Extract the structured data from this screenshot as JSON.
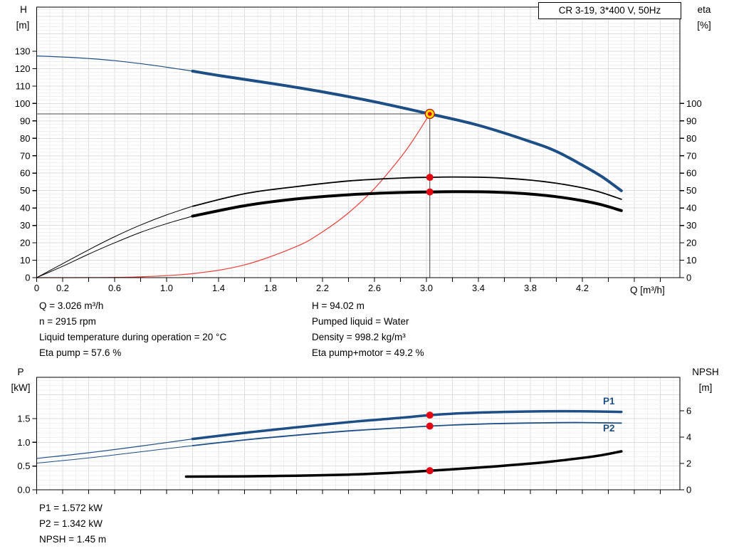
{
  "header": {
    "model_box": "CR 3-19, 3*400 V, 50Hz"
  },
  "colors": {
    "curve_blue": "#1d4e85",
    "curve_black": "#000000",
    "system_red": "#e8413a",
    "marker_red": "#e30613",
    "duty_yellow": "#ffd900",
    "duty_ring": "#cc0000",
    "crosshair_gray": "#444444",
    "grid_minor": "#efefef",
    "grid_major": "#dcdcdc"
  },
  "duty_point": {
    "q_m3h": 3.026,
    "h_m": 94.02,
    "n_rpm": 2915,
    "eta_pump_pct": 57.6,
    "eta_pump_motor_pct": 49.2,
    "p1_kw": 1.572,
    "p2_kw": 1.342,
    "npsh_m": 1.45,
    "pumped_liquid": "Water",
    "density_kg_m3": 998.2,
    "liquid_temp_c": 20
  },
  "readouts": {
    "left": [
      "Q = 3.026 m³/h",
      "n = 2915 rpm",
      "Liquid temperature during operation = 20 °C",
      "Eta pump = 57.6 %"
    ],
    "right": [
      "H = 94.02 m",
      "Pumped liquid = Water",
      "Density = 998.2 kg/m³",
      "Eta pump+motor = 49.2 %"
    ],
    "power": [
      "P1 = 1.572 kW",
      "P2 = 1.342 kW",
      "NPSH = 1.45 m"
    ]
  },
  "chart_data": [
    {
      "id": "qh",
      "type": "line",
      "title": "",
      "x_axis": {
        "title": "Q [m³/h]",
        "min": 0,
        "max": 4.95,
        "tick_step": 0.2,
        "tick_labels": [
          "0",
          "0.2",
          "0.6",
          "1.0",
          "1.4",
          "1.8",
          "2.2",
          "2.6",
          "3.0",
          "3.4",
          "3.8",
          "4.2"
        ]
      },
      "y_left": {
        "title": "H",
        "unit": "[m]",
        "min": 0,
        "max": 155,
        "tick_labels": [
          "0",
          "10",
          "20",
          "30",
          "40",
          "50",
          "60",
          "70",
          "80",
          "90",
          "100",
          "110",
          "120",
          "130"
        ]
      },
      "y_right": {
        "title": "eta",
        "unit": "[%]",
        "min": 0,
        "max": 100,
        "tick_labels": [
          "0",
          "10",
          "20",
          "30",
          "40",
          "50",
          "60",
          "70",
          "80",
          "90",
          "100"
        ]
      },
      "crosshair": {
        "q": 3.026,
        "value": 94.02,
        "axis": "left"
      },
      "series": [
        {
          "name": "system-curve",
          "axis": "left",
          "color": "#e8413a",
          "width": 1.2,
          "points": [
            [
              0,
              0
            ],
            [
              0.4,
              0.05
            ],
            [
              0.8,
              0.5
            ],
            [
              1.2,
              2.3
            ],
            [
              1.6,
              7.3
            ],
            [
              2.0,
              17.9
            ],
            [
              2.2,
              26.3
            ],
            [
              2.4,
              37.2
            ],
            [
              2.6,
              51.2
            ],
            [
              2.8,
              68.9
            ],
            [
              2.9,
              79.3
            ],
            [
              3.026,
              94.02
            ]
          ]
        },
        {
          "name": "eta-pump-curve-extension",
          "axis": "right",
          "color": "#000000",
          "width": 1,
          "points": [
            [
              0,
              0
            ],
            [
              0.2,
              8
            ],
            [
              0.4,
              16
            ],
            [
              0.6,
              23.5
            ],
            [
              0.8,
              30.2
            ],
            [
              1.0,
              36
            ],
            [
              1.2,
              41
            ]
          ]
        },
        {
          "name": "eta-pump-curve",
          "axis": "right",
          "color": "#000000",
          "width": 1.8,
          "points": [
            [
              1.2,
              41
            ],
            [
              1.6,
              48.2
            ],
            [
              2.0,
              52.3
            ],
            [
              2.4,
              55.5
            ],
            [
              2.8,
              57.2
            ],
            [
              3.026,
              57.6
            ],
            [
              3.2,
              57.8
            ],
            [
              3.4,
              57.7
            ],
            [
              3.6,
              57.1
            ],
            [
              3.8,
              56.0
            ],
            [
              4.0,
              54.2
            ],
            [
              4.2,
              51.6
            ],
            [
              4.35,
              48.8
            ],
            [
              4.5,
              45.0
            ]
          ]
        },
        {
          "name": "eta-pump-motor-curve-extension",
          "axis": "right",
          "color": "#000000",
          "width": 1,
          "points": [
            [
              0,
              0
            ],
            [
              0.2,
              6.5
            ],
            [
              0.4,
              13.5
            ],
            [
              0.6,
              20
            ],
            [
              0.8,
              26
            ],
            [
              1.0,
              31
            ],
            [
              1.2,
              35.3
            ]
          ]
        },
        {
          "name": "eta-pump-motor-curve",
          "axis": "right",
          "color": "#000000",
          "width": 4,
          "points": [
            [
              1.2,
              35.3
            ],
            [
              1.6,
              41.3
            ],
            [
              2.0,
              45.2
            ],
            [
              2.4,
              47.6
            ],
            [
              2.8,
              48.9
            ],
            [
              3.026,
              49.2
            ],
            [
              3.2,
              49.35
            ],
            [
              3.4,
              49.3
            ],
            [
              3.6,
              48.9
            ],
            [
              3.8,
              48.0
            ],
            [
              4.0,
              46.5
            ],
            [
              4.2,
              44.2
            ],
            [
              4.35,
              41.8
            ],
            [
              4.5,
              38.5
            ]
          ]
        },
        {
          "name": "head-curve-extension",
          "axis": "left",
          "color": "#1d4e85",
          "width": 1.2,
          "points": [
            [
              0,
              127.3
            ],
            [
              0.3,
              126.3
            ],
            [
              0.6,
              124.6
            ],
            [
              0.9,
              121.9
            ],
            [
              1.2,
              118.6
            ]
          ]
        },
        {
          "name": "head-curve",
          "axis": "left",
          "color": "#1d4e85",
          "width": 4,
          "points": [
            [
              1.2,
              118.6
            ],
            [
              1.4,
              116.1
            ],
            [
              1.8,
              111.6
            ],
            [
              2.2,
              106.7
            ],
            [
              2.6,
              101.0
            ],
            [
              3.026,
              94.02
            ],
            [
              3.4,
              87.5
            ],
            [
              3.8,
              78.1
            ],
            [
              4.0,
              72.5
            ],
            [
              4.2,
              64.6
            ],
            [
              4.35,
              58.0
            ],
            [
              4.5,
              49.9
            ]
          ]
        }
      ],
      "markers": [
        {
          "style": "dot",
          "axis": "right",
          "q": 3.026,
          "value": 57.6
        },
        {
          "style": "dot",
          "axis": "right",
          "q": 3.026,
          "value": 49.2
        },
        {
          "style": "duty",
          "axis": "left",
          "q": 3.026,
          "value": 94.02
        }
      ]
    },
    {
      "id": "power",
      "type": "line",
      "title": "",
      "x_axis": {
        "title": "",
        "min": 0,
        "max": 4.95,
        "tick_step": 0.2,
        "tick_labels": []
      },
      "y_left": {
        "title": "P",
        "unit": "[kW]",
        "min": 0,
        "max": 2.37,
        "tick_labels": [
          "0.0",
          "0.5",
          "1.0",
          "1.5"
        ]
      },
      "y_right": {
        "title": "NPSH",
        "unit": "[m]",
        "min": 0,
        "max": 8.5,
        "tick_labels": [
          "0",
          "2",
          "4",
          "6"
        ]
      },
      "curve_labels": {
        "p1": "P1",
        "p2": "P2"
      },
      "series": [
        {
          "name": "p1-curve-extension",
          "axis": "left",
          "color": "#1d4e85",
          "width": 1.2,
          "points": [
            [
              0,
              0.66
            ],
            [
              0.4,
              0.78
            ],
            [
              0.8,
              0.92
            ],
            [
              1.2,
              1.07
            ]
          ]
        },
        {
          "name": "p1-curve",
          "axis": "left",
          "color": "#1d4e85",
          "width": 3.5,
          "points": [
            [
              1.2,
              1.07
            ],
            [
              1.6,
              1.2
            ],
            [
              2.0,
              1.315
            ],
            [
              2.4,
              1.425
            ],
            [
              2.8,
              1.515
            ],
            [
              3.026,
              1.572
            ],
            [
              3.3,
              1.615
            ],
            [
              3.6,
              1.64
            ],
            [
              3.9,
              1.652
            ],
            [
              4.2,
              1.653
            ],
            [
              4.5,
              1.64
            ]
          ]
        },
        {
          "name": "p2-curve-extension",
          "axis": "left",
          "color": "#1d4e85",
          "width": 1,
          "points": [
            [
              0,
              0.56
            ],
            [
              0.4,
              0.67
            ],
            [
              0.8,
              0.8
            ],
            [
              1.2,
              0.93
            ]
          ]
        },
        {
          "name": "p2-curve",
          "axis": "left",
          "color": "#1d4e85",
          "width": 1.8,
          "points": [
            [
              1.2,
              0.93
            ],
            [
              1.6,
              1.05
            ],
            [
              2.0,
              1.15
            ],
            [
              2.4,
              1.24
            ],
            [
              2.8,
              1.305
            ],
            [
              3.026,
              1.342
            ],
            [
              3.3,
              1.375
            ],
            [
              3.6,
              1.397
            ],
            [
              3.9,
              1.41
            ],
            [
              4.2,
              1.416
            ],
            [
              4.5,
              1.405
            ]
          ]
        },
        {
          "name": "npsh-curve",
          "axis": "right",
          "color": "#000000",
          "width": 3.5,
          "points": [
            [
              1.15,
              1.0
            ],
            [
              1.6,
              1.02
            ],
            [
              2.0,
              1.07
            ],
            [
              2.4,
              1.15
            ],
            [
              2.7,
              1.27
            ],
            [
              3.026,
              1.45
            ],
            [
              3.3,
              1.62
            ],
            [
              3.6,
              1.83
            ],
            [
              3.9,
              2.08
            ],
            [
              4.2,
              2.42
            ],
            [
              4.35,
              2.63
            ],
            [
              4.5,
              2.92
            ]
          ]
        }
      ],
      "markers": [
        {
          "style": "dot",
          "axis": "left",
          "q": 3.026,
          "value": 1.572
        },
        {
          "style": "dot",
          "axis": "left",
          "q": 3.026,
          "value": 1.342
        },
        {
          "style": "dot",
          "axis": "right",
          "q": 3.026,
          "value": 1.45
        }
      ]
    }
  ]
}
